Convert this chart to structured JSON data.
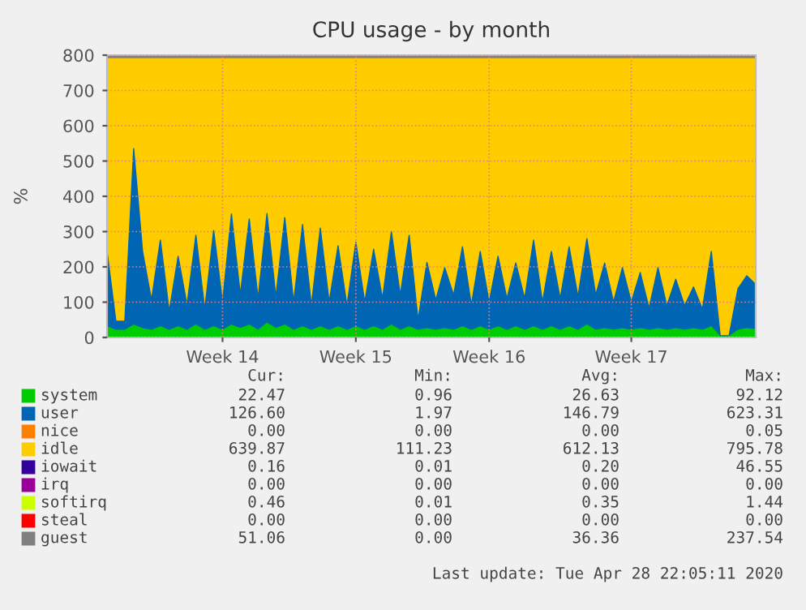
{
  "chart_data": {
    "type": "area",
    "stacked": true,
    "title": "CPU usage - by month",
    "ylabel": "%",
    "categories": [
      null,
      null,
      null,
      null,
      null,
      null,
      null,
      null,
      null,
      null,
      null,
      null,
      null,
      "Week 14",
      null,
      null,
      null,
      null,
      null,
      null,
      null,
      null,
      null,
      null,
      null,
      null,
      null,
      null,
      "Week 15",
      null,
      null,
      null,
      null,
      null,
      null,
      null,
      null,
      null,
      null,
      null,
      null,
      null,
      null,
      "Week 16",
      null,
      null,
      null,
      null,
      null,
      null,
      null,
      null,
      null,
      null,
      null,
      null,
      null,
      null,
      null,
      "Week 17",
      null,
      null,
      null,
      null,
      null,
      null,
      null,
      null,
      null,
      null,
      null,
      null,
      null,
      null
    ],
    "ylim": [
      0,
      800
    ],
    "yticks": [
      0,
      100,
      200,
      300,
      400,
      500,
      600,
      700,
      800
    ],
    "grid": true,
    "legend": "bottom",
    "series": [
      {
        "name": "system",
        "color": "#00cc00",
        "values": [
          30,
          20,
          20,
          35,
          25,
          20,
          30,
          20,
          30,
          20,
          35,
          20,
          30,
          20,
          35,
          25,
          35,
          20,
          40,
          25,
          35,
          20,
          30,
          20,
          30,
          20,
          30,
          20,
          30,
          20,
          30,
          20,
          35,
          20,
          30,
          20,
          25,
          20,
          25,
          20,
          30,
          20,
          30,
          20,
          30,
          20,
          30,
          20,
          30,
          20,
          30,
          20,
          30,
          20,
          35,
          20,
          25,
          20,
          25,
          20,
          25,
          20,
          25,
          20,
          25,
          20,
          25,
          20,
          30,
          2,
          2,
          20,
          25,
          22
        ]
      },
      {
        "name": "user",
        "color": "#0066b3",
        "values": [
          214,
          26,
          26,
          500,
          219,
          86,
          246,
          54,
          200,
          72,
          255,
          60,
          273,
          80,
          315,
          96,
          301,
          90,
          311,
          90,
          305,
          80,
          290,
          70,
          280,
          80,
          230,
          70,
          240,
          80,
          220,
          90,
          265,
          100,
          260,
          30,
          188,
          86,
          173,
          100,
          227,
          72,
          214,
          80,
          200,
          90,
          181,
          90,
          246,
          80,
          214,
          90,
          227,
          95,
          245,
          100,
          186,
          80,
          173,
          80,
          159,
          63,
          173,
          70,
          140,
          70,
          118,
          60,
          214,
          3,
          3,
          118,
          150,
          128
        ]
      },
      {
        "name": "nice",
        "color": "#ff8000",
        "values": [
          null,
          null,
          null,
          null,
          null,
          null,
          null,
          null,
          null,
          null,
          null,
          null,
          null,
          null,
          null,
          null,
          null,
          null,
          null,
          null,
          null,
          null,
          null,
          null,
          null,
          null,
          null,
          null,
          null,
          null,
          null,
          null,
          null,
          null,
          null,
          null,
          null,
          null,
          null,
          null,
          null,
          null,
          null,
          null,
          null,
          null,
          null,
          null,
          null,
          null,
          null,
          null,
          null,
          null,
          null,
          null,
          null,
          null,
          null,
          null,
          null,
          null,
          null,
          null,
          null,
          null,
          null,
          null,
          null,
          null,
          null,
          null,
          null,
          null
        ]
      },
      {
        "name": "idle",
        "color": "#ffcc00",
        "values": [
          546,
          744,
          744,
          255,
          546,
          684,
          514,
          716,
          560,
          698,
          500,
          710,
          487,
          690,
          440,
          669,
          454,
          680,
          439,
          675,
          450,
          690,
          470,
          700,
          480,
          690,
          530,
          700,
          520,
          690,
          540,
          680,
          490,
          670,
          500,
          740,
          577,
          684,
          592,
          670,
          533,
          698,
          546,
          690,
          560,
          680,
          579,
          680,
          514,
          690,
          546,
          680,
          533,
          675,
          510,
          670,
          579,
          690,
          592,
          690,
          606,
          707,
          592,
          700,
          625,
          700,
          647,
          710,
          546,
          785,
          785,
          652,
          615,
          640
        ]
      },
      {
        "name": "iowait",
        "color": "#330099",
        "values": [
          null,
          null,
          null,
          null,
          null,
          null,
          null,
          null,
          null,
          null,
          null,
          null,
          null,
          null,
          null,
          null,
          null,
          null,
          null,
          null,
          null,
          null,
          null,
          null,
          null,
          null,
          null,
          null,
          null,
          null,
          null,
          null,
          null,
          null,
          null,
          null,
          null,
          null,
          null,
          null,
          null,
          null,
          null,
          null,
          null,
          null,
          null,
          null,
          null,
          null,
          null,
          null,
          null,
          null,
          null,
          null,
          null,
          null,
          null,
          null,
          null,
          null,
          null,
          null,
          null,
          null,
          null,
          null,
          null,
          null,
          null,
          null,
          null,
          null
        ]
      },
      {
        "name": "irq",
        "color": "#990099",
        "values": [
          null,
          null,
          null,
          null,
          null,
          null,
          null,
          null,
          null,
          null,
          null,
          null,
          null,
          null,
          null,
          null,
          null,
          null,
          null,
          null,
          null,
          null,
          null,
          null,
          null,
          null,
          null,
          null,
          null,
          null,
          null,
          null,
          null,
          null,
          null,
          null,
          null,
          null,
          null,
          null,
          null,
          null,
          null,
          null,
          null,
          null,
          null,
          null,
          null,
          null,
          null,
          null,
          null,
          null,
          null,
          null,
          null,
          null,
          null,
          null,
          null,
          null,
          null,
          null,
          null,
          null,
          null,
          null,
          null,
          null,
          null,
          null,
          null,
          null
        ]
      },
      {
        "name": "softirq",
        "color": "#ccff00",
        "values": [
          null,
          null,
          null,
          null,
          null,
          null,
          null,
          null,
          null,
          null,
          null,
          null,
          null,
          null,
          null,
          null,
          null,
          null,
          null,
          null,
          null,
          null,
          null,
          null,
          null,
          null,
          null,
          null,
          null,
          null,
          null,
          null,
          null,
          null,
          null,
          null,
          null,
          null,
          null,
          null,
          null,
          null,
          null,
          null,
          null,
          null,
          null,
          null,
          null,
          null,
          null,
          null,
          null,
          null,
          null,
          null,
          null,
          null,
          null,
          null,
          null,
          null,
          null,
          null,
          null,
          null,
          null,
          null,
          null,
          null,
          null,
          null,
          null,
          null
        ]
      },
      {
        "name": "steal",
        "color": "#ff0000",
        "values": [
          null,
          null,
          null,
          null,
          null,
          null,
          null,
          null,
          null,
          null,
          null,
          null,
          null,
          null,
          null,
          null,
          null,
          null,
          null,
          null,
          null,
          null,
          null,
          null,
          null,
          null,
          null,
          null,
          null,
          null,
          null,
          null,
          null,
          null,
          null,
          null,
          null,
          null,
          null,
          null,
          null,
          null,
          null,
          null,
          null,
          null,
          null,
          null,
          null,
          null,
          null,
          null,
          null,
          null,
          null,
          null,
          null,
          null,
          null,
          null,
          null,
          null,
          null,
          null,
          null,
          null,
          null,
          null,
          null,
          null,
          null,
          null,
          null,
          null
        ]
      },
      {
        "name": "guest",
        "color": "#808080",
        "values": [
          10,
          10,
          10,
          10,
          10,
          10,
          10,
          10,
          10,
          10,
          10,
          10,
          10,
          10,
          10,
          10,
          10,
          10,
          10,
          10,
          10,
          10,
          10,
          10,
          10,
          10,
          10,
          10,
          10,
          10,
          10,
          10,
          10,
          10,
          10,
          10,
          10,
          10,
          10,
          10,
          10,
          10,
          10,
          10,
          10,
          10,
          10,
          10,
          10,
          10,
          10,
          10,
          10,
          10,
          10,
          10,
          10,
          10,
          10,
          10,
          10,
          10,
          10,
          10,
          10,
          10,
          10,
          10,
          10,
          10,
          10,
          10,
          10,
          10
        ]
      }
    ],
    "annotations": [
      "Cur:",
      "Min:",
      "Avg:",
      "Max:",
      "22.47",
      "0.96",
      "26.63",
      "92.12",
      "126.60",
      "1.97",
      "146.79",
      "623.31",
      "0.00",
      "0.00",
      "0.00",
      "0.05",
      "639.87",
      "111.23",
      "612.13",
      "795.78",
      "0.16",
      "0.01",
      "0.20",
      "46.55",
      "0.00",
      "0.00",
      "0.00",
      "0.00",
      "0.46",
      "0.01",
      "0.35",
      "1.44",
      "0.00",
      "0.00",
      "0.00",
      "0.00",
      "51.06",
      "0.00",
      "36.36",
      "237.54",
      "Last update: Tue Apr 28 22:05:11 2020"
    ]
  }
}
